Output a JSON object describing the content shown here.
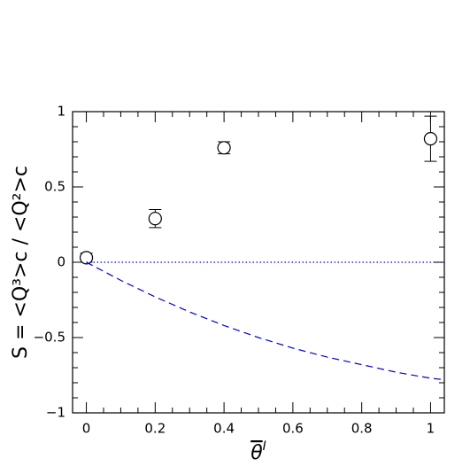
{
  "chart_data": {
    "type": "scatter",
    "x_label": {
      "base": "θ",
      "sup": "I"
    },
    "y_label": "S = <Q³>c / <Q²>c",
    "xlim": [
      -0.04,
      1.04
    ],
    "ylim": [
      -1,
      1
    ],
    "xticks": [
      0,
      0.2,
      0.4,
      0.6,
      0.8,
      1
    ],
    "yticks": [
      {
        "value": -1,
        "label": "−1"
      },
      {
        "value": -0.5,
        "label": "−0.5"
      },
      0,
      0.5,
      1
    ],
    "xminorticks": [
      0.05,
      0.1,
      0.15,
      0.25,
      0.3,
      0.35,
      0.45,
      0.5,
      0.55,
      0.65,
      0.7,
      0.75,
      0.85,
      0.9,
      0.95
    ],
    "yminorticks": [
      -0.9,
      -0.8,
      -0.7,
      -0.6,
      -0.4,
      -0.3,
      -0.2,
      -0.1,
      0.1,
      0.2,
      0.3,
      0.4,
      0.6,
      0.7,
      0.8,
      0.9
    ],
    "series": [
      {
        "kind": "points",
        "color": "#000000",
        "x": [
          0,
          0.2,
          0.4,
          1
        ],
        "values": [
          0.03,
          0.29,
          0.76,
          0.82
        ],
        "errors": [
          0.03,
          0.06,
          0.04,
          0.15
        ]
      },
      {
        "kind": "line",
        "dash": "8 5",
        "color": "#0000cc",
        "x": [
          0,
          0.1,
          0.2,
          0.3,
          0.4,
          0.5,
          0.6,
          0.7,
          0.8,
          0.9,
          1,
          1.04
        ],
        "values": [
          0,
          -0.12,
          -0.23,
          -0.33,
          -0.42,
          -0.5,
          -0.57,
          -0.63,
          -0.68,
          -0.73,
          -0.77,
          -0.78
        ]
      },
      {
        "kind": "line",
        "dash": "1.5 2.5",
        "color": "#0000cc",
        "x": [
          0,
          1.04
        ],
        "values": [
          0,
          0
        ]
      }
    ]
  }
}
